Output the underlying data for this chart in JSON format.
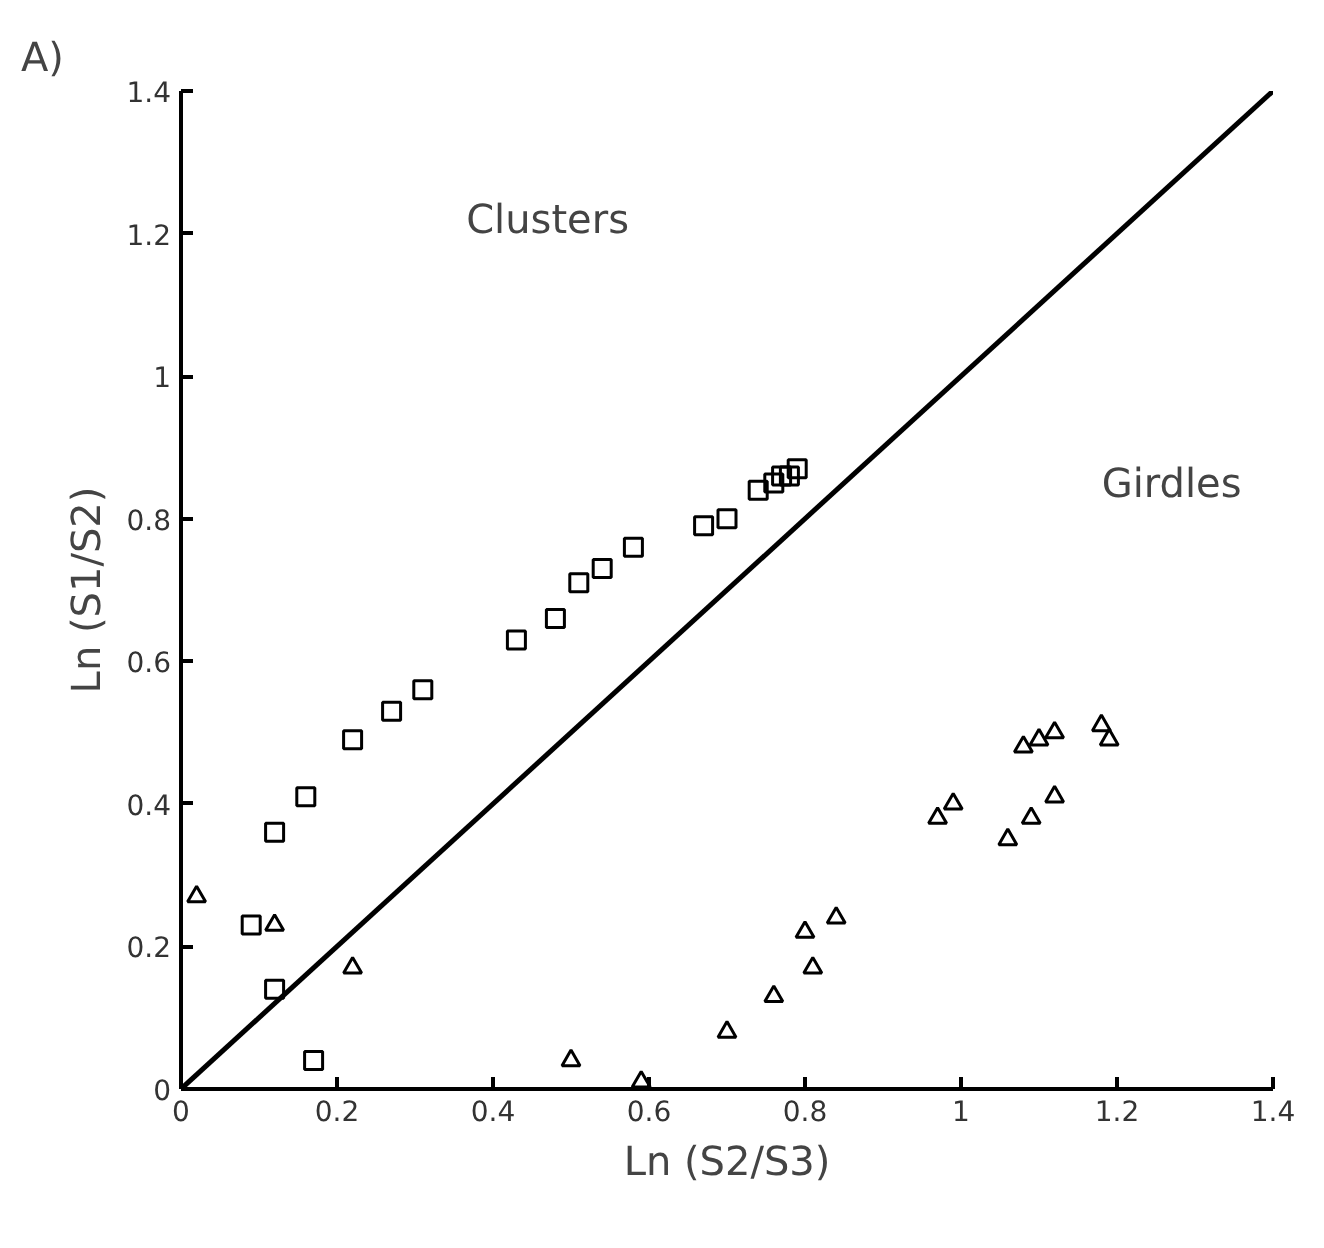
{
  "chart_data": {
    "type": "scatter",
    "title": "A)",
    "xlabel": "Ln (S2/S3)",
    "ylabel": "Ln (S1/S2)",
    "xlim": [
      0,
      1.4
    ],
    "ylim": [
      0,
      1.4
    ],
    "xticks": [
      0,
      0.2,
      0.4,
      0.6,
      0.8,
      1,
      1.2,
      1.4
    ],
    "yticks": [
      0,
      0.2,
      0.4,
      0.6,
      0.8,
      1,
      1.2,
      1.4
    ],
    "grid": false,
    "annotations": [
      "Clusters",
      "Girdles"
    ],
    "series": [
      {
        "marker": "square",
        "color": "#000000",
        "x": [
          0.17,
          0.09,
          0.12,
          0.12,
          0.16,
          0.22,
          0.27,
          0.31,
          0.43,
          0.48,
          0.51,
          0.54,
          0.58,
          0.67,
          0.7,
          0.74,
          0.76,
          0.77,
          0.78,
          0.79
        ],
        "values": [
          0.04,
          0.23,
          0.14,
          0.36,
          0.41,
          0.49,
          0.53,
          0.56,
          0.63,
          0.66,
          0.71,
          0.73,
          0.76,
          0.79,
          0.8,
          0.84,
          0.85,
          0.86,
          0.86,
          0.87
        ]
      },
      {
        "marker": "triangle",
        "color": "#000000",
        "x": [
          0.02,
          0.12,
          0.22,
          0.5,
          0.59,
          0.7,
          0.76,
          0.8,
          0.81,
          0.84,
          0.97,
          0.99,
          1.06,
          1.09,
          1.08,
          1.1,
          1.12,
          1.12,
          1.18,
          1.19
        ],
        "values": [
          0.27,
          0.23,
          0.17,
          0.04,
          0.01,
          0.08,
          0.13,
          0.22,
          0.17,
          0.24,
          0.38,
          0.4,
          0.35,
          0.38,
          0.48,
          0.49,
          0.5,
          0.41,
          0.51,
          0.49
        ]
      },
      {
        "type": "line",
        "color": "#000000",
        "x": [
          0,
          1.4
        ],
        "values": [
          0,
          1.4
        ]
      }
    ]
  }
}
